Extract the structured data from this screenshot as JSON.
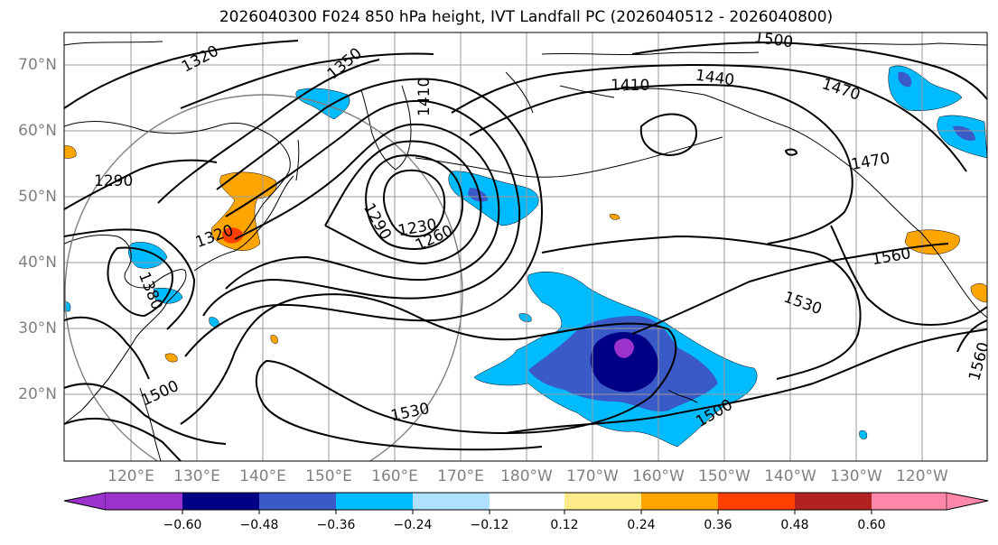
{
  "title": "2026040300 F024 850 hPa height, IVT Landfall PC (2026040512 - 2026040800)",
  "map": {
    "lat_labels": [
      "70°N",
      "60°N",
      "50°N",
      "40°N",
      "30°N",
      "20°N"
    ],
    "lon_labels": [
      "120°E",
      "130°E",
      "140°E",
      "150°E",
      "160°E",
      "170°E",
      "180°W",
      "170°W",
      "160°W",
      "150°W",
      "140°W",
      "130°W",
      "120°W"
    ],
    "lat_values": [
      70,
      60,
      50,
      40,
      30,
      20
    ],
    "lon_values": [
      120,
      130,
      140,
      150,
      160,
      170,
      180,
      190,
      200,
      210,
      220,
      230,
      240
    ],
    "contour_labels": [
      "1320",
      "1350",
      "1410",
      "1410",
      "1440",
      "1500",
      "1470",
      "1470",
      "1290",
      "1320",
      "1290",
      "1230",
      "1260",
      "1380",
      "1500",
      "1530",
      "1560",
      "1530",
      "1500",
      "1560"
    ]
  },
  "colorbar": {
    "tick_labels": [
      "−0.60",
      "−0.48",
      "−0.36",
      "−0.24",
      "−0.12",
      "0.12",
      "0.24",
      "0.36",
      "0.48",
      "0.60"
    ],
    "colors": [
      "#9b32cc",
      "#000087",
      "#3a5ac8",
      "#00bbff",
      "#afe1ff",
      "#ffffff",
      "#ffeb87",
      "#ffa500",
      "#ff4000",
      "#b22222",
      "#ff88aa",
      "#ff88aa"
    ]
  }
}
